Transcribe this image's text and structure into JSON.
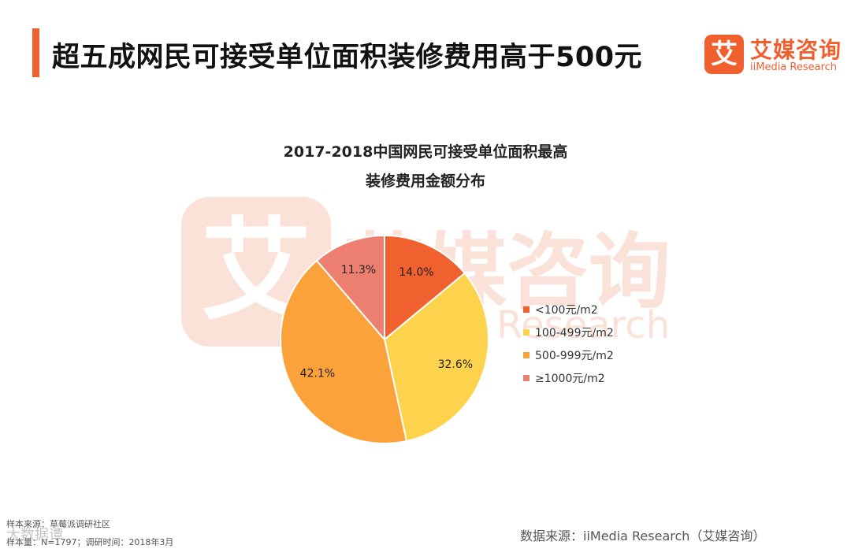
{
  "header": {
    "title": "超五成网民可接受单位面积装修费用高于500元",
    "accent_color": "#f0602f"
  },
  "brand": {
    "badge_char": "艾",
    "name_cn": "艾媒咨询",
    "name_en": "iiMedia Research",
    "color": "#f0602f"
  },
  "watermark": {
    "badge_char": "艾",
    "name_cn": "艾媒咨询",
    "name_en": "Research"
  },
  "chart_data": {
    "type": "pie",
    "title_lines": [
      "2017-2018中国网民可接受单位面积最高",
      "装修费用金额分布"
    ],
    "categories": [
      "<100元/m2",
      "100-499元/m2",
      "500-999元/m2",
      "≥1000元/m2"
    ],
    "values": [
      14.0,
      32.6,
      42.1,
      11.3
    ],
    "value_labels": [
      "14.0%",
      "32.6%",
      "42.1%",
      "11.3%"
    ],
    "colors": [
      "#f1602f",
      "#fdd34d",
      "#fba23a",
      "#ec7f70"
    ],
    "legend_position": "right",
    "start_angle": "12 o'clock, clockwise"
  },
  "footer": {
    "sample_source": "样本来源：草莓派调研社区",
    "sample_size": "样本量：N=1797；调研时间：2018年3月",
    "data_source": "数据来源：iiMedia Research（艾媒咨询）",
    "overlay_watermark": "大数据谭"
  }
}
